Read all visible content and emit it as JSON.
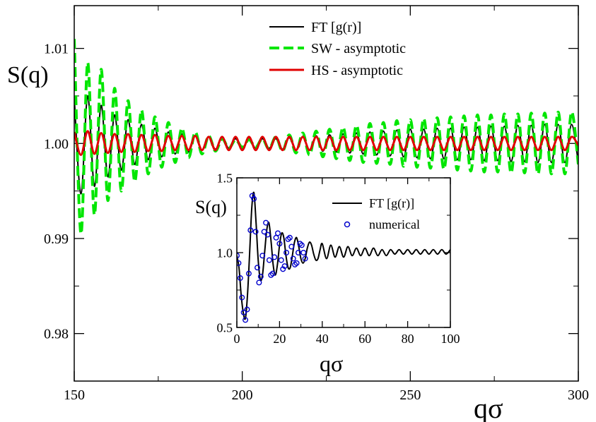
{
  "chart_data": [
    {
      "type": "line",
      "title": "",
      "xlabel": "qσ",
      "ylabel": "S(q)",
      "xlim": [
        150,
        300
      ],
      "ylim": [
        0.975,
        1.0145
      ],
      "xticks": [
        150,
        200,
        250,
        300
      ],
      "xtick_labels": [
        "150",
        "200",
        "250",
        "300"
      ],
      "yticks": [
        0.98,
        0.99,
        1.0,
        1.01
      ],
      "ytick_labels": [
        "0.98",
        "0.99",
        "1.00",
        "1.01"
      ],
      "grid": false,
      "legend_position": "top-center",
      "series": [
        {
          "name": "FT [g(r)]",
          "color": "#000000",
          "style": "solid",
          "x": [
            150,
            152,
            154,
            156,
            158,
            160,
            162,
            164,
            166,
            168,
            170,
            172,
            174,
            176,
            178,
            180,
            182,
            184,
            186,
            188,
            190,
            192,
            194,
            196,
            198,
            200,
            202,
            204,
            206,
            208,
            210,
            212,
            214,
            216,
            218,
            220,
            222,
            224,
            226,
            228,
            230,
            232,
            234,
            236,
            238,
            240,
            242,
            244,
            246,
            248,
            250,
            252,
            254,
            256,
            258,
            260,
            262,
            264,
            266,
            268,
            270,
            272,
            274,
            276,
            278,
            280,
            282,
            284,
            286,
            288,
            290,
            292,
            294,
            296,
            298,
            300
          ],
          "y": [
            1.0048,
            0.9947,
            1.005,
            0.9955,
            1.004,
            0.9965,
            1.003,
            0.9972,
            1.0025,
            0.9978,
            1.002,
            0.9983,
            1.0016,
            0.9986,
            1.0012,
            0.9989,
            1.001,
            0.9991,
            1.0008,
            0.9993,
            1.0007,
            0.9994,
            1.0006,
            0.9995,
            1.0005,
            0.9995,
            1.0005,
            0.9995,
            1.0005,
            0.9995,
            1.0005,
            0.9994,
            1.0006,
            0.9993,
            1.0007,
            0.9993,
            1.0008,
            0.9992,
            1.0009,
            0.9991,
            1.001,
            0.999,
            1.0011,
            0.9989,
            1.0012,
            0.9988,
            1.0013,
            0.9987,
            1.0014,
            0.9986,
            1.0015,
            0.9985,
            1.0015,
            0.9984,
            1.0016,
            0.9984,
            1.0016,
            0.9983,
            1.0017,
            0.9983,
            1.0017,
            0.9982,
            1.0018,
            0.9982,
            1.0018,
            0.9981,
            1.0019,
            0.9981,
            1.0019,
            0.998,
            1.002,
            0.998,
            1.002,
            0.998,
            1.002,
            0.998
          ]
        },
        {
          "name": "SW - asymptotic",
          "color": "#00e600",
          "style": "dashed",
          "x": [
            150,
            152,
            154,
            156,
            158,
            160,
            162,
            164,
            166,
            168,
            170,
            172,
            174,
            176,
            178,
            180,
            182,
            184,
            186,
            188,
            190,
            192,
            194,
            196,
            198,
            200,
            202,
            204,
            206,
            208,
            210,
            212,
            214,
            216,
            218,
            220,
            222,
            224,
            226,
            228,
            230,
            232,
            234,
            236,
            238,
            240,
            242,
            244,
            246,
            248,
            250,
            252,
            254,
            256,
            258,
            260,
            262,
            264,
            266,
            268,
            270,
            272,
            274,
            276,
            278,
            280,
            282,
            284,
            286,
            288,
            290,
            292,
            294,
            296,
            298,
            300
          ],
          "y": [
            1.011,
            0.9905,
            1.0085,
            0.9925,
            1.0078,
            0.994,
            1.0058,
            0.995,
            1.0045,
            0.996,
            1.0035,
            0.9968,
            1.0028,
            0.9975,
            1.0022,
            0.998,
            1.0016,
            0.9985,
            1.0012,
            0.9989,
            1.0008,
            0.9992,
            1.0005,
            0.9995,
            1.0004,
            0.9996,
            1.0004,
            0.9996,
            1.0005,
            0.9994,
            1.0007,
            0.9992,
            1.0009,
            0.999,
            1.0011,
            0.9988,
            1.0013,
            0.9986,
            1.0015,
            0.9984,
            1.0017,
            0.9982,
            1.0019,
            0.998,
            1.0021,
            0.9979,
            1.0022,
            0.9978,
            1.0024,
            0.9976,
            1.0025,
            0.9975,
            1.0026,
            0.9974,
            1.0027,
            0.9973,
            1.0028,
            0.9972,
            1.0029,
            0.9971,
            1.003,
            0.997,
            1.003,
            0.997,
            1.0031,
            0.9969,
            1.0031,
            0.9969,
            1.0032,
            0.9968,
            1.0032,
            0.9968,
            1.0033,
            0.9968,
            1.0033,
            0.9978
          ]
        },
        {
          "name": "HS  - asymptotic",
          "color": "#e00000",
          "style": "solid",
          "x": [
            150,
            152,
            154,
            156,
            158,
            160,
            162,
            164,
            166,
            168,
            170,
            172,
            174,
            176,
            178,
            180,
            182,
            184,
            186,
            188,
            190,
            192,
            194,
            196,
            198,
            200,
            202,
            204,
            206,
            208,
            210,
            212,
            214,
            216,
            218,
            220,
            222,
            224,
            226,
            228,
            230,
            232,
            234,
            236,
            238,
            240,
            242,
            244,
            246,
            248,
            250,
            252,
            254,
            256,
            258,
            260,
            262,
            264,
            266,
            268,
            270,
            272,
            274,
            276,
            278,
            280,
            282,
            284,
            286,
            288,
            290,
            292,
            294,
            296,
            298,
            300
          ],
          "y": [
            1.0012,
            0.9988,
            1.0013,
            0.9989,
            1.0011,
            0.999,
            1.001,
            0.9991,
            1.001,
            0.9991,
            1.0009,
            0.9992,
            1.0009,
            0.9992,
            1.0008,
            0.9993,
            1.0008,
            0.9993,
            1.0008,
            0.9993,
            1.0007,
            0.9993,
            1.0007,
            0.9993,
            1.0007,
            0.9993,
            1.0007,
            0.9993,
            1.0007,
            0.9993,
            1.0007,
            0.9993,
            1.0007,
            0.9993,
            1.0007,
            0.9993,
            1.0007,
            0.9993,
            1.0007,
            0.9993,
            1.0007,
            0.9993,
            1.0007,
            0.9993,
            1.0007,
            0.9993,
            1.0007,
            0.9993,
            1.0007,
            0.9993,
            1.0007,
            0.9993,
            1.0007,
            0.9993,
            1.0007,
            0.9993,
            1.0007,
            0.9993,
            1.0007,
            0.9993,
            1.0007,
            0.9993,
            1.0007,
            0.9993,
            1.0007,
            0.9993,
            1.0007,
            0.9993,
            1.0007,
            0.9993,
            1.0007,
            0.9993,
            1.0007,
            0.9993,
            1.0007,
            0.9998
          ]
        }
      ]
    },
    {
      "type": "line",
      "title": "",
      "xlabel": "qσ",
      "ylabel": "S(q)",
      "xlim": [
        0,
        100
      ],
      "ylim": [
        0.5,
        1.5
      ],
      "xticks": [
        0,
        20,
        40,
        60,
        80,
        100
      ],
      "xtick_labels": [
        "0",
        "20",
        "40",
        "60",
        "80",
        "100"
      ],
      "yticks": [
        0.5,
        1.0,
        1.5
      ],
      "ytick_labels": [
        "0.5",
        "1.0",
        "1.5"
      ],
      "grid": false,
      "legend_position": "top-right",
      "series": [
        {
          "name": "FT [g(r)]",
          "color": "#000000",
          "style": "solid",
          "x": [
            0,
            1,
            2,
            3,
            4,
            5,
            6,
            7,
            8,
            9,
            10,
            11,
            12,
            13,
            14,
            15,
            16,
            17,
            18,
            19,
            20,
            21,
            22,
            23,
            24,
            25,
            26,
            27,
            28,
            29,
            30,
            31,
            32,
            33,
            34,
            35,
            36,
            37,
            38,
            39,
            40,
            42,
            44,
            46,
            48,
            50,
            52,
            54,
            56,
            58,
            60,
            62,
            64,
            66,
            68,
            70,
            72,
            74,
            76,
            78,
            80,
            82,
            84,
            86,
            88,
            90,
            92,
            94,
            96,
            98,
            100
          ],
          "y": [
            0.98,
            0.9,
            0.72,
            0.6,
            0.56,
            0.72,
            1.0,
            1.3,
            1.4,
            1.2,
            0.95,
            0.82,
            0.85,
            1.0,
            1.15,
            1.2,
            1.08,
            0.92,
            0.85,
            0.92,
            1.05,
            1.13,
            1.1,
            0.98,
            0.9,
            0.9,
            0.98,
            1.07,
            1.1,
            1.04,
            0.96,
            0.93,
            0.96,
            1.03,
            1.07,
            1.05,
            0.99,
            0.95,
            0.96,
            1.02,
            1.06,
            0.96,
            1.05,
            0.97,
            1.04,
            0.97,
            1.04,
            0.98,
            1.03,
            0.98,
            1.03,
            0.98,
            1.03,
            0.98,
            1.02,
            0.98,
            1.02,
            0.99,
            1.02,
            0.99,
            1.02,
            0.99,
            1.02,
            0.99,
            1.02,
            0.99,
            1.02,
            0.99,
            1.02,
            0.99,
            1.02
          ]
        },
        {
          "name": "numerical",
          "color": "#0000cc",
          "style": "circles",
          "x": [
            0,
            0.8,
            1.6,
            2.4,
            3.2,
            4.0,
            4.8,
            5.6,
            6.4,
            7.2,
            8.0,
            8.8,
            9.6,
            10.4,
            11.2,
            12.0,
            12.8,
            13.6,
            14.4,
            15.2,
            16.0,
            16.8,
            17.6,
            18.4,
            19.2,
            20.0,
            20.8,
            21.6,
            22.4,
            23.2,
            24.0,
            24.8,
            25.6,
            26.4,
            27.2,
            28.0,
            28.8,
            29.6,
            30.4,
            31.2,
            32.0
          ],
          "y": [
            0.98,
            0.93,
            0.83,
            0.7,
            0.6,
            0.55,
            0.62,
            0.86,
            1.15,
            1.38,
            1.36,
            1.14,
            0.9,
            0.8,
            0.84,
            0.98,
            1.14,
            1.2,
            1.12,
            0.95,
            0.85,
            0.86,
            0.97,
            1.1,
            1.13,
            1.06,
            0.95,
            0.89,
            0.91,
            1.0,
            1.09,
            1.1,
            1.04,
            0.96,
            0.92,
            0.93,
            1.0,
            1.06,
            1.05,
            1.0,
            0.96
          ]
        }
      ]
    }
  ]
}
